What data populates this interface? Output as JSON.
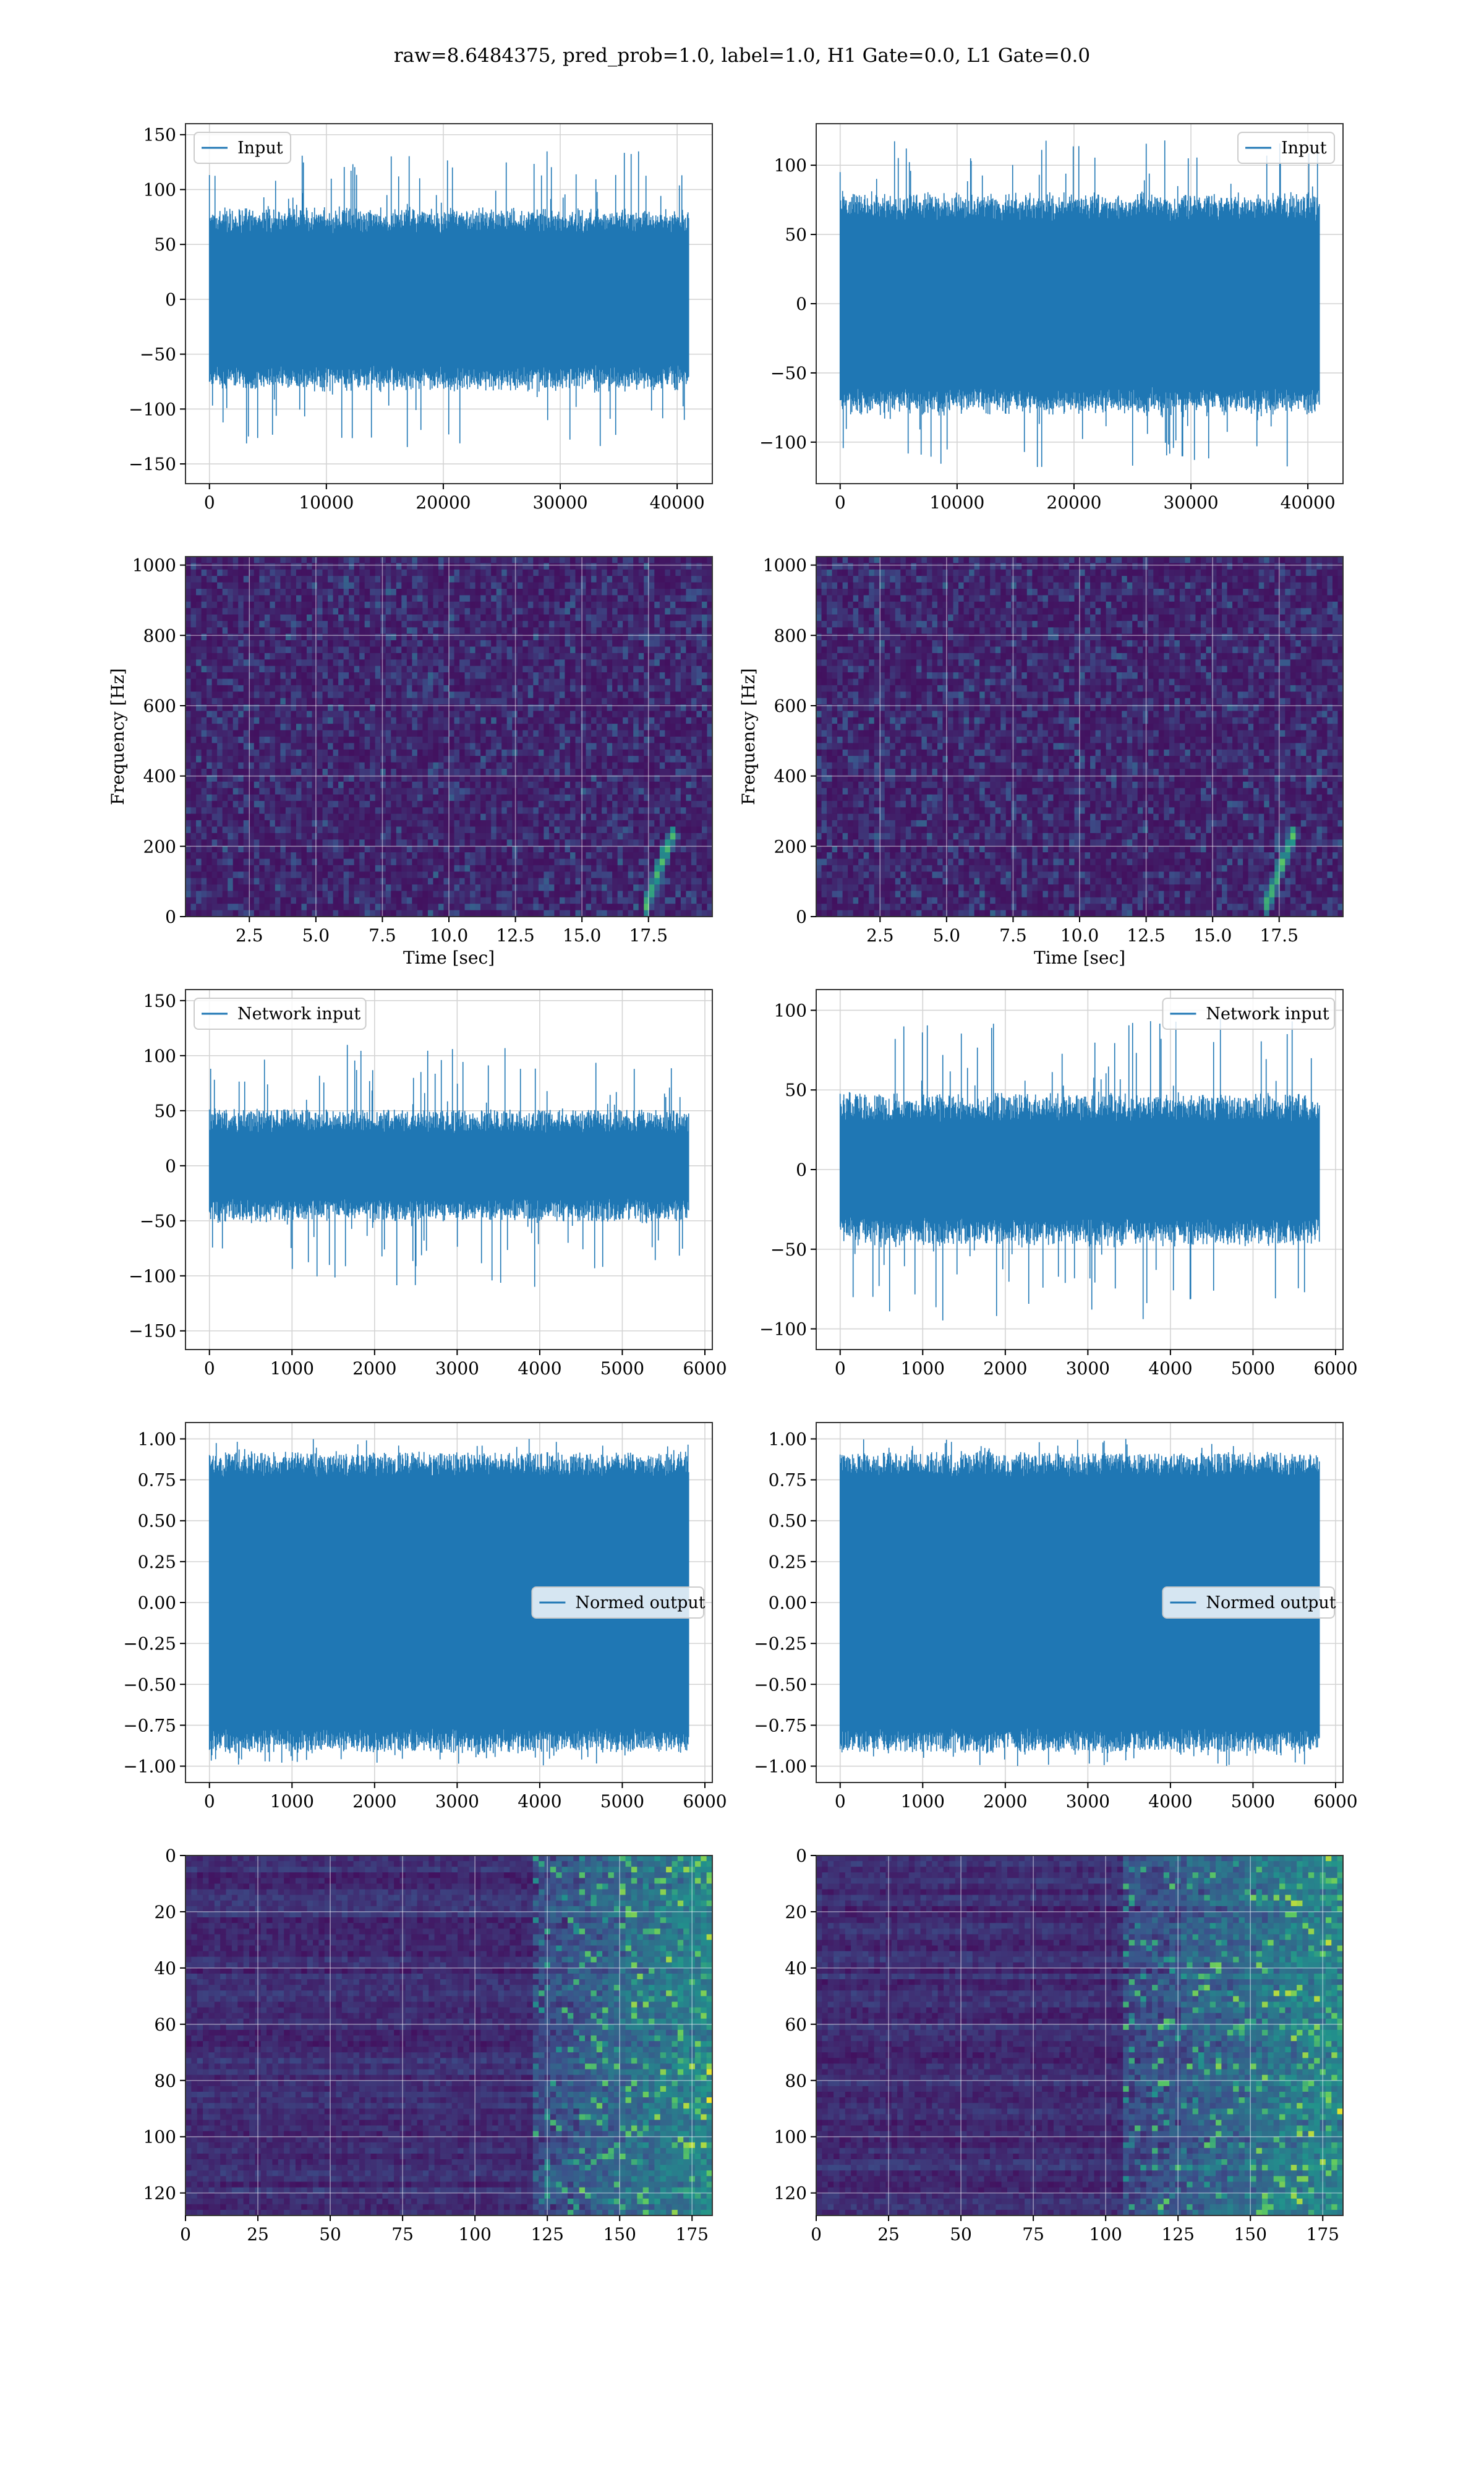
{
  "figure": {
    "suptitle": "raw=8.6484375, pred_prob=1.0, label=1.0, H1 Gate=0.0, L1 Gate=0.0",
    "colors": {
      "line": "#1f77b4",
      "grid": "#d4d4d4",
      "frame": "#333333",
      "viridis_low": "#440154",
      "viridis_high": "#fde725"
    }
  },
  "chart_data": [
    {
      "id": "h1-input",
      "type": "line",
      "legend": "Input",
      "legend_loc": "upper left",
      "n_samples": 40960,
      "x_ticks": [
        0,
        10000,
        20000,
        30000,
        40000
      ],
      "y_ticks": [
        -150,
        -100,
        -50,
        0,
        50,
        100,
        150
      ],
      "xlim": [
        -2048,
        43008
      ],
      "ylim": [
        -168,
        160
      ],
      "amp_core": 70,
      "amp_peak": 135,
      "grid": true
    },
    {
      "id": "l1-input",
      "type": "line",
      "legend": "Input",
      "legend_loc": "upper right",
      "n_samples": 40960,
      "x_ticks": [
        0,
        10000,
        20000,
        30000,
        40000
      ],
      "y_ticks": [
        -100,
        -50,
        0,
        50,
        100
      ],
      "xlim": [
        -2048,
        43008
      ],
      "ylim": [
        -130,
        130
      ],
      "amp_core": 70,
      "amp_peak": 120,
      "grid": true
    },
    {
      "id": "h1-spectrogram",
      "type": "heatmap",
      "xlabel": "Time [sec]",
      "ylabel": "Frequency [Hz]",
      "x_ticks": [
        2.5,
        5.0,
        7.5,
        10.0,
        12.5,
        15.0,
        17.5
      ],
      "x_tick_labels": [
        "2.5",
        "5.0",
        "7.5",
        "10.0",
        "12.5",
        "15.0",
        "17.5"
      ],
      "y_ticks": [
        0,
        200,
        400,
        600,
        800,
        1000
      ],
      "xlim": [
        0.1,
        19.9
      ],
      "ylim": [
        0,
        1024
      ],
      "chirp_time": 18.2,
      "colormap": "viridis",
      "grid": true
    },
    {
      "id": "l1-spectrogram",
      "type": "heatmap",
      "xlabel": "Time [sec]",
      "ylabel": "Frequency [Hz]",
      "x_ticks": [
        2.5,
        5.0,
        7.5,
        10.0,
        12.5,
        15.0,
        17.5
      ],
      "x_tick_labels": [
        "2.5",
        "5.0",
        "7.5",
        "10.0",
        "12.5",
        "15.0",
        "17.5"
      ],
      "y_ticks": [
        0,
        200,
        400,
        600,
        800,
        1000
      ],
      "xlim": [
        0.1,
        19.9
      ],
      "ylim": [
        0,
        1024
      ],
      "chirp_time": 17.8,
      "colormap": "viridis",
      "grid": true
    },
    {
      "id": "h1-network-input",
      "type": "line",
      "legend": "Network input",
      "legend_loc": "upper left",
      "n_samples": 5800,
      "x_ticks": [
        0,
        1000,
        2000,
        3000,
        4000,
        5000,
        6000
      ],
      "y_ticks": [
        -150,
        -100,
        -50,
        0,
        50,
        100,
        150
      ],
      "xlim": [
        -290,
        6090
      ],
      "ylim": [
        -167,
        160
      ],
      "amp_core": 35,
      "amp_peak": 110,
      "grid": true
    },
    {
      "id": "l1-network-input",
      "type": "line",
      "legend": "Network input",
      "legend_loc": "upper right",
      "n_samples": 5800,
      "x_ticks": [
        0,
        1000,
        2000,
        3000,
        4000,
        5000,
        6000
      ],
      "y_ticks": [
        -100,
        -50,
        0,
        50,
        100
      ],
      "xlim": [
        -290,
        6090
      ],
      "ylim": [
        -113,
        113
      ],
      "amp_core": 35,
      "amp_peak": 95,
      "grid": true
    },
    {
      "id": "h1-normed-output",
      "type": "line",
      "legend": "Normed output",
      "legend_loc": "center right",
      "n_samples": 5800,
      "x_ticks": [
        0,
        1000,
        2000,
        3000,
        4000,
        5000,
        6000
      ],
      "y_ticks": [
        -1.0,
        -0.75,
        -0.5,
        -0.25,
        0.0,
        0.25,
        0.5,
        0.75,
        1.0
      ],
      "y_tick_labels": [
        "−1.00",
        "−0.75",
        "−0.50",
        "−0.25",
        "0.00",
        "0.25",
        "0.50",
        "0.75",
        "1.00"
      ],
      "xlim": [
        -290,
        6090
      ],
      "ylim": [
        -1.1,
        1.1
      ],
      "amp_core": 0.9,
      "amp_peak": 1.0,
      "grid": true
    },
    {
      "id": "l1-normed-output",
      "type": "line",
      "legend": "Normed output",
      "legend_loc": "center right",
      "n_samples": 5800,
      "x_ticks": [
        0,
        1000,
        2000,
        3000,
        4000,
        5000,
        6000
      ],
      "y_ticks": [
        -1.0,
        -0.75,
        -0.5,
        -0.25,
        0.0,
        0.25,
        0.5,
        0.75,
        1.0
      ],
      "y_tick_labels": [
        "−1.00",
        "−0.75",
        "−0.50",
        "−0.25",
        "0.00",
        "0.25",
        "0.50",
        "0.75",
        "1.00"
      ],
      "xlim": [
        -290,
        6090
      ],
      "ylim": [
        -1.1,
        1.1
      ],
      "amp_core": 0.9,
      "amp_peak": 1.0,
      "grid": true
    },
    {
      "id": "h1-feature-map",
      "type": "heatmap",
      "x_ticks": [
        0,
        25,
        50,
        75,
        100,
        125,
        150,
        175
      ],
      "y_ticks": [
        0,
        20,
        40,
        60,
        80,
        100,
        120
      ],
      "xlim": [
        0,
        182
      ],
      "ylim": [
        128,
        0
      ],
      "n_rows": 128,
      "n_cols": 182,
      "hot_from_col": 120,
      "colormap": "viridis",
      "grid": true
    },
    {
      "id": "l1-feature-map",
      "type": "heatmap",
      "x_ticks": [
        0,
        25,
        50,
        75,
        100,
        125,
        150,
        175
      ],
      "y_ticks": [
        0,
        20,
        40,
        60,
        80,
        100,
        120
      ],
      "xlim": [
        0,
        182
      ],
      "ylim": [
        128,
        0
      ],
      "n_rows": 128,
      "n_cols": 182,
      "hot_from_col": 105,
      "colormap": "viridis",
      "grid": true
    }
  ]
}
